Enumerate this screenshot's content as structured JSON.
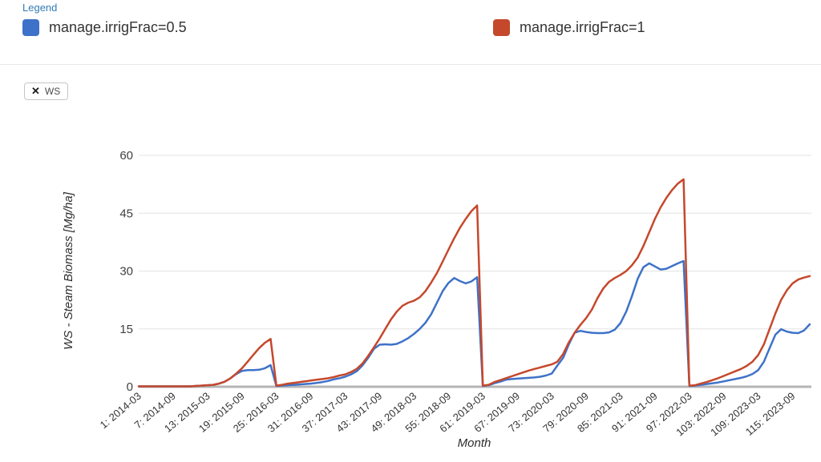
{
  "legend": {
    "title": "Legend",
    "items": [
      {
        "label": "manage.irrigFrac=0.5",
        "color": "#3E72C8"
      },
      {
        "label": "manage.irrigFrac=1",
        "color": "#C5482C"
      }
    ]
  },
  "chip": {
    "label": "WS",
    "close_icon": "✕"
  },
  "chart_data": {
    "type": "line",
    "title": "",
    "xlabel": "Month",
    "ylabel": "WS - Steam Biomass [Mg/ha]",
    "ylim": [
      0,
      60
    ],
    "yticks": [
      0,
      15,
      30,
      45,
      60
    ],
    "grid": true,
    "legend_position": "top",
    "x_range": [
      1,
      118
    ],
    "x_start": "2014-03",
    "x_end": "2023-12",
    "xticks": [
      {
        "m": 1,
        "label": "1: 2014-03"
      },
      {
        "m": 7,
        "label": "7: 2014-09"
      },
      {
        "m": 13,
        "label": "13: 2015-03"
      },
      {
        "m": 19,
        "label": "19: 2015-09"
      },
      {
        "m": 25,
        "label": "25: 2016-03"
      },
      {
        "m": 31,
        "label": "31: 2016-09"
      },
      {
        "m": 37,
        "label": "37: 2017-03"
      },
      {
        "m": 43,
        "label": "43: 2017-09"
      },
      {
        "m": 49,
        "label": "49: 2018-03"
      },
      {
        "m": 55,
        "label": "55: 2018-09"
      },
      {
        "m": 61,
        "label": "61: 2019-03"
      },
      {
        "m": 67,
        "label": "67: 2019-09"
      },
      {
        "m": 73,
        "label": "73: 2020-03"
      },
      {
        "m": 79,
        "label": "79: 2020-09"
      },
      {
        "m": 85,
        "label": "85: 2021-03"
      },
      {
        "m": 91,
        "label": "91: 2021-09"
      },
      {
        "m": 97,
        "label": "97: 2022-03"
      },
      {
        "m": 103,
        "label": "103: 2022-09"
      },
      {
        "m": 109,
        "label": "109: 2023-03"
      },
      {
        "m": 115,
        "label": "115: 2023-09"
      }
    ],
    "series": [
      {
        "name": "manage.irrigFrac=0.5",
        "color": "#3E72C8",
        "values": [
          0.1,
          0.1,
          0.1,
          0.1,
          0.1,
          0.1,
          0.1,
          0.1,
          0.1,
          0.1,
          0.2,
          0.3,
          0.4,
          0.5,
          0.8,
          1.3,
          2.2,
          3.3,
          4.1,
          4.3,
          4.3,
          4.4,
          4.8,
          5.6,
          0.2,
          0.3,
          0.4,
          0.5,
          0.6,
          0.7,
          0.8,
          1,
          1.2,
          1.5,
          1.9,
          2.2,
          2.6,
          3.2,
          4,
          5.5,
          7.5,
          9.8,
          10.9,
          11,
          10.9,
          11.1,
          11.8,
          12.6,
          13.7,
          15,
          16.6,
          18.8,
          21.8,
          24.8,
          26.9,
          28.2,
          27.4,
          26.8,
          27.3,
          28.4,
          0.2,
          0.4,
          0.9,
          1.3,
          1.8,
          2,
          2.1,
          2.2,
          2.3,
          2.4,
          2.6,
          2.9,
          3.4,
          5.5,
          7.5,
          11,
          14,
          14.5,
          14.2,
          14,
          13.9,
          13.9,
          14.1,
          14.8,
          16.5,
          19.5,
          23.5,
          28,
          31,
          32,
          31.2,
          30.4,
          30.6,
          31.3,
          32,
          32.6,
          0.2,
          0.3,
          0.5,
          0.7,
          0.9,
          1.1,
          1.4,
          1.7,
          2,
          2.3,
          2.7,
          3.3,
          4.3,
          6.5,
          10,
          13.5,
          14.9,
          14.3,
          14,
          13.9,
          14.6,
          16.2
        ]
      },
      {
        "name": "manage.irrigFrac=1",
        "color": "#C5482C",
        "values": [
          0.1,
          0.1,
          0.1,
          0.1,
          0.1,
          0.1,
          0.1,
          0.1,
          0.1,
          0.1,
          0.2,
          0.3,
          0.4,
          0.5,
          0.8,
          1.3,
          2.2,
          3.4,
          4.8,
          6.5,
          8.3,
          10,
          11.4,
          12.4,
          0.3,
          0.5,
          0.8,
          1,
          1.2,
          1.4,
          1.6,
          1.8,
          2,
          2.2,
          2.5,
          2.9,
          3.2,
          3.8,
          4.6,
          6,
          8,
          10.2,
          12.5,
          15,
          17.5,
          19.5,
          21,
          21.8,
          22.3,
          23.2,
          24.8,
          27,
          29.5,
          32.5,
          35.5,
          38.5,
          41.2,
          43.5,
          45.5,
          47,
          0.3,
          0.5,
          1.2,
          1.7,
          2.2,
          2.7,
          3.2,
          3.7,
          4.2,
          4.6,
          5,
          5.4,
          5.8,
          6.5,
          8.5,
          11.5,
          14,
          16,
          17.8,
          20,
          23,
          25.5,
          27.2,
          28.2,
          29,
          30,
          31.5,
          33.5,
          36.5,
          40,
          43.5,
          46.5,
          49,
          51,
          52.7,
          53.8,
          0.3,
          0.4,
          0.8,
          1.2,
          1.7,
          2.2,
          2.8,
          3.4,
          4,
          4.6,
          5.4,
          6.5,
          8.2,
          11,
          15,
          19,
          22.5,
          25,
          26.8,
          27.8,
          28.3,
          28.7
        ]
      }
    ]
  }
}
